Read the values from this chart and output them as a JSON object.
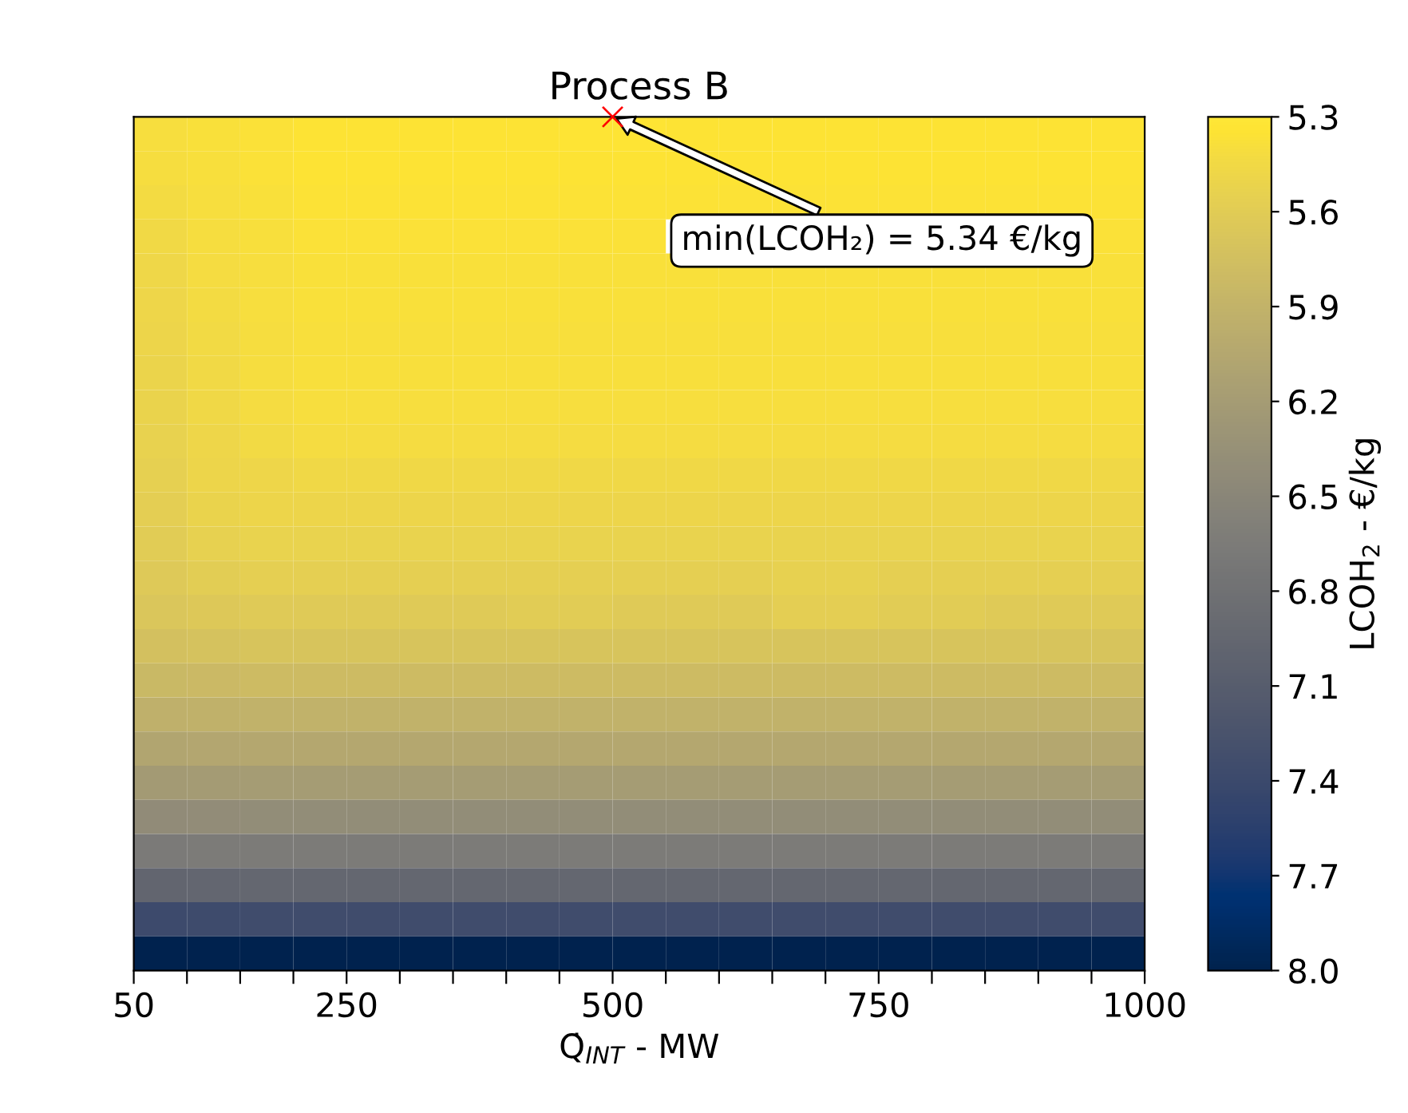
{
  "chart_data": {
    "type": "heatmap",
    "title": "Process B",
    "xlabel": "Q̇$_{INT}$ - MW",
    "clabel": "LCOH$_{2}$ - €/kg",
    "x": [
      75,
      125,
      175,
      225,
      275,
      325,
      375,
      425,
      475,
      525,
      575,
      625,
      675,
      725,
      775,
      825,
      875,
      925,
      975
    ],
    "xlim": [
      50,
      1000
    ],
    "xticks": [
      50,
      {
        "value": 100,
        "label": null
      },
      {
        "value": 150,
        "label": null
      },
      {
        "value": 200,
        "label": null
      },
      250,
      {
        "value": 300,
        "label": null
      },
      {
        "value": 350,
        "label": null
      },
      {
        "value": 400,
        "label": null
      },
      {
        "value": 450,
        "label": null
      },
      500,
      {
        "value": 550,
        "label": null
      },
      {
        "value": 600,
        "label": null
      },
      {
        "value": 650,
        "label": null
      },
      {
        "value": 700,
        "label": null
      },
      750,
      {
        "value": 800,
        "label": null
      },
      {
        "value": 850,
        "label": null
      },
      {
        "value": 900,
        "label": null
      },
      {
        "value": 950,
        "label": null
      },
      1000
    ],
    "y_categories": [
      null,
      null,
      null,
      null,
      null,
      null,
      null,
      null,
      null,
      null,
      null,
      null,
      null,
      null,
      null,
      null,
      null,
      null,
      null,
      null,
      null,
      null,
      null,
      null,
      null
    ],
    "cells": [
      [
        5.4,
        5.38,
        5.37,
        5.35,
        5.35,
        5.35,
        5.35,
        5.35,
        5.34,
        5.34,
        5.35,
        5.35,
        5.35,
        5.35,
        5.35,
        5.35,
        5.35,
        5.35,
        5.35
      ],
      [
        5.41,
        5.39,
        5.37,
        5.35,
        5.35,
        5.35,
        5.35,
        5.35,
        5.35,
        5.35,
        5.35,
        5.35,
        5.35,
        5.35,
        5.35,
        5.35,
        5.35,
        5.35,
        5.35
      ],
      [
        5.43,
        5.4,
        5.38,
        5.36,
        5.36,
        5.36,
        5.36,
        5.36,
        5.36,
        5.36,
        5.36,
        5.36,
        5.36,
        5.36,
        5.36,
        5.36,
        5.36,
        5.36,
        5.36
      ],
      [
        5.45,
        5.41,
        5.39,
        5.37,
        5.37,
        5.37,
        5.37,
        5.37,
        5.37,
        5.37,
        null,
        null,
        null,
        null,
        null,
        null,
        null,
        null,
        5.37
      ],
      [
        5.47,
        5.42,
        5.4,
        5.38,
        5.38,
        5.38,
        5.38,
        5.38,
        5.38,
        5.38,
        5.38,
        5.38,
        5.38,
        5.38,
        5.38,
        5.38,
        5.38,
        5.38,
        5.38
      ],
      [
        5.48,
        5.43,
        5.4,
        5.38,
        5.38,
        5.38,
        5.38,
        5.38,
        5.38,
        5.38,
        5.38,
        5.38,
        5.38,
        5.38,
        5.38,
        5.38,
        5.38,
        5.38,
        5.38
      ],
      [
        5.5,
        5.44,
        5.41,
        5.39,
        5.39,
        5.39,
        5.39,
        5.39,
        5.39,
        5.39,
        5.39,
        5.39,
        5.39,
        5.39,
        5.39,
        5.39,
        5.39,
        5.39,
        5.39
      ],
      [
        5.51,
        5.45,
        5.41,
        5.39,
        5.39,
        5.39,
        5.39,
        5.39,
        5.39,
        5.39,
        5.39,
        5.39,
        5.39,
        5.39,
        5.39,
        5.39,
        5.39,
        5.39,
        5.39
      ],
      [
        5.52,
        5.46,
        5.42,
        5.4,
        5.4,
        5.4,
        5.4,
        5.4,
        5.4,
        5.4,
        5.4,
        5.4,
        5.4,
        5.4,
        5.4,
        5.4,
        5.4,
        5.4,
        5.4
      ],
      [
        5.54,
        5.48,
        5.44,
        5.42,
        5.42,
        5.42,
        5.42,
        5.42,
        5.42,
        5.42,
        5.42,
        5.42,
        5.42,
        5.42,
        5.42,
        5.42,
        5.42,
        5.42,
        5.42
      ],
      [
        5.56,
        5.5,
        5.48,
        5.46,
        5.46,
        5.46,
        5.46,
        5.46,
        5.46,
        5.46,
        5.46,
        5.46,
        5.46,
        5.46,
        5.46,
        5.46,
        5.46,
        5.46,
        5.46
      ],
      [
        5.58,
        5.52,
        5.5,
        5.49,
        5.49,
        5.49,
        5.49,
        5.49,
        5.49,
        5.49,
        5.49,
        5.49,
        5.49,
        5.49,
        5.49,
        5.49,
        5.49,
        5.49,
        5.49
      ],
      [
        5.6,
        5.55,
        5.53,
        5.53,
        5.53,
        5.53,
        5.53,
        5.53,
        5.53,
        5.53,
        5.53,
        5.53,
        5.53,
        5.53,
        5.53,
        5.53,
        5.53,
        5.53,
        5.53
      ],
      [
        5.63,
        5.59,
        5.57,
        5.57,
        5.57,
        5.57,
        5.57,
        5.57,
        5.57,
        5.57,
        5.57,
        5.57,
        5.55,
        5.55,
        5.57,
        5.57,
        5.57,
        5.57,
        5.57
      ],
      [
        5.67,
        5.64,
        5.62,
        5.62,
        5.62,
        5.62,
        5.62,
        5.6,
        5.6,
        5.62,
        5.62,
        5.62,
        5.58,
        5.58,
        5.6,
        5.6,
        5.62,
        5.62,
        5.62
      ],
      [
        5.74,
        5.72,
        5.7,
        5.7,
        5.7,
        5.7,
        5.7,
        5.7,
        5.7,
        5.7,
        5.7,
        5.7,
        5.7,
        5.7,
        5.7,
        5.7,
        5.7,
        5.7,
        5.7
      ],
      [
        5.83,
        5.82,
        5.8,
        5.8,
        5.8,
        5.8,
        5.8,
        5.8,
        5.8,
        5.8,
        5.8,
        5.8,
        5.8,
        5.8,
        5.8,
        5.8,
        5.8,
        5.8,
        5.8
      ],
      [
        5.94,
        5.93,
        5.92,
        5.92,
        5.92,
        5.92,
        5.92,
        5.92,
        5.92,
        5.92,
        5.92,
        5.92,
        5.92,
        5.92,
        5.92,
        5.92,
        5.92,
        5.92,
        5.92
      ],
      [
        6.07,
        6.06,
        6.05,
        6.05,
        6.05,
        6.05,
        6.05,
        6.05,
        6.05,
        6.05,
        6.05,
        6.05,
        6.05,
        6.05,
        6.05,
        6.05,
        6.05,
        6.05,
        6.05
      ],
      [
        6.22,
        6.21,
        6.2,
        6.2,
        6.2,
        6.2,
        6.2,
        6.2,
        6.2,
        6.2,
        6.2,
        6.2,
        6.2,
        6.2,
        6.2,
        6.2,
        6.2,
        6.2,
        6.2
      ],
      [
        6.42,
        6.41,
        6.4,
        6.4,
        6.4,
        6.4,
        6.4,
        6.4,
        6.4,
        6.4,
        6.4,
        6.4,
        6.4,
        6.4,
        6.4,
        6.4,
        6.4,
        6.4,
        6.4
      ],
      [
        6.67,
        6.66,
        6.65,
        6.65,
        6.65,
        6.65,
        6.65,
        6.65,
        6.65,
        6.65,
        6.65,
        6.65,
        6.65,
        6.65,
        6.65,
        6.65,
        6.65,
        6.65,
        6.65
      ],
      [
        6.97,
        6.96,
        6.95,
        6.95,
        6.95,
        6.95,
        6.95,
        6.95,
        6.95,
        6.95,
        6.95,
        6.95,
        6.95,
        6.95,
        6.95,
        6.95,
        6.95,
        6.95,
        6.95
      ],
      [
        7.38,
        7.37,
        7.35,
        7.35,
        7.35,
        7.35,
        7.35,
        7.35,
        7.35,
        7.35,
        7.35,
        7.35,
        7.35,
        7.35,
        7.35,
        7.35,
        7.35,
        7.35,
        7.35
      ],
      [
        8.0,
        8.0,
        8.0,
        8.0,
        8.0,
        8.0,
        8.0,
        8.0,
        8.0,
        8.0,
        8.0,
        8.0,
        8.0,
        8.0,
        8.0,
        8.0,
        8.0,
        8.0,
        8.0
      ]
    ],
    "clim": [
      8.0,
      5.3
    ],
    "cticks": [
      5.3,
      5.6,
      5.9,
      6.2,
      6.5,
      6.8,
      7.1,
      7.4,
      7.7,
      {
        "value": 8,
        "label": "8.0"
      }
    ],
    "annotations": [
      "min(LCOH₂) = 5.34 €/kg"
    ],
    "tick_labels": "x",
    "grid": false,
    "legend": false
  }
}
